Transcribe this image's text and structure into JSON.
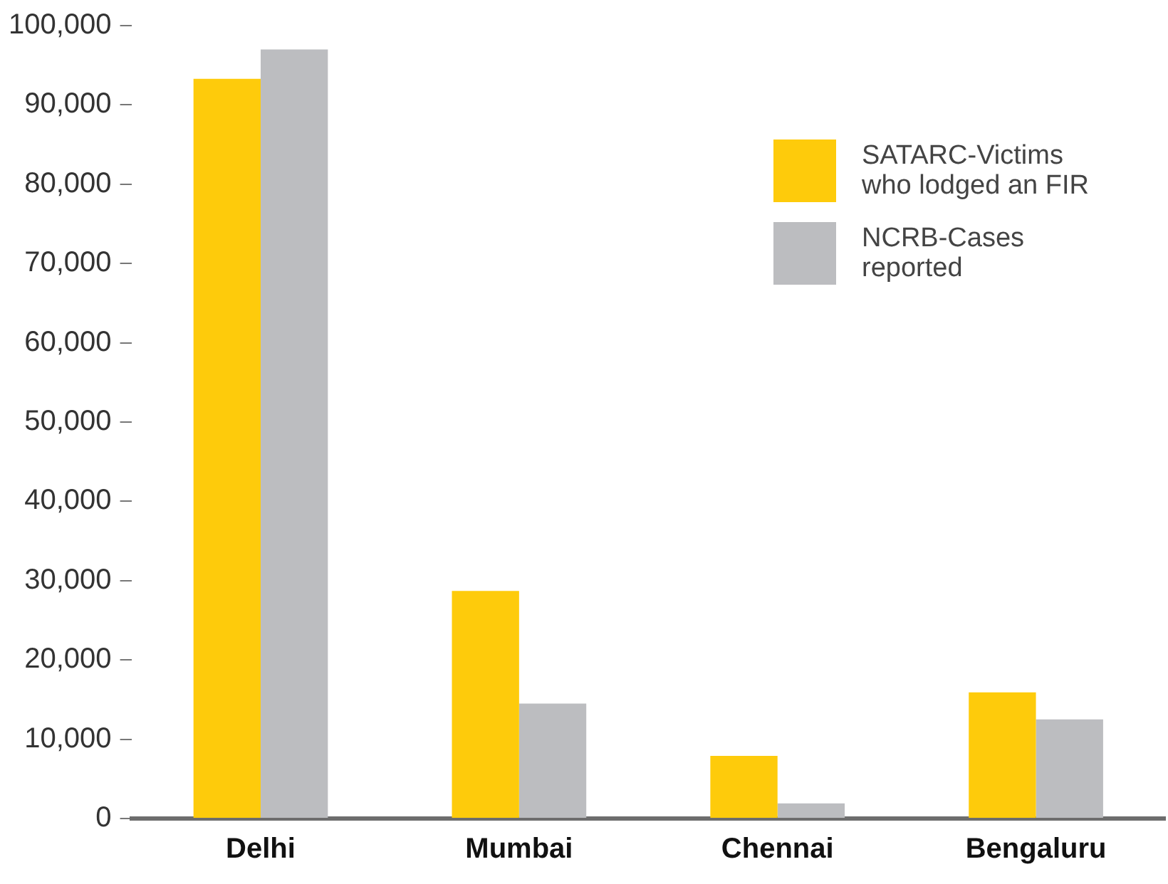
{
  "chart_data": {
    "type": "bar",
    "categories": [
      "Delhi",
      "Mumbai",
      "Chennai",
      "Bengaluru"
    ],
    "series": [
      {
        "name": "SATARC-Victims who lodged an FIR",
        "color": "#fecb0b",
        "values": [
          93300,
          28700,
          7900,
          15900
        ]
      },
      {
        "name": "NCRB-Cases reported",
        "color": "#bcbdc0",
        "values": [
          97000,
          14500,
          1900,
          12500
        ]
      }
    ],
    "ylim": [
      0,
      100000
    ],
    "yticks": [
      0,
      {
        "value": 10000,
        "label": "10,000"
      },
      {
        "value": 20000,
        "label": "20,000"
      },
      {
        "value": 30000,
        "label": "30,000"
      },
      {
        "value": 40000,
        "label": "40,000"
      },
      {
        "value": 50000,
        "label": "50,000"
      },
      {
        "value": 60000,
        "label": "60,000"
      },
      {
        "value": 70000,
        "label": "70,000"
      },
      {
        "value": 80000,
        "label": "80,000"
      },
      {
        "value": 90000,
        "label": "90,000"
      },
      {
        "value": 100000,
        "label": "100,000"
      }
    ],
    "grid": false,
    "legend": "top right"
  }
}
